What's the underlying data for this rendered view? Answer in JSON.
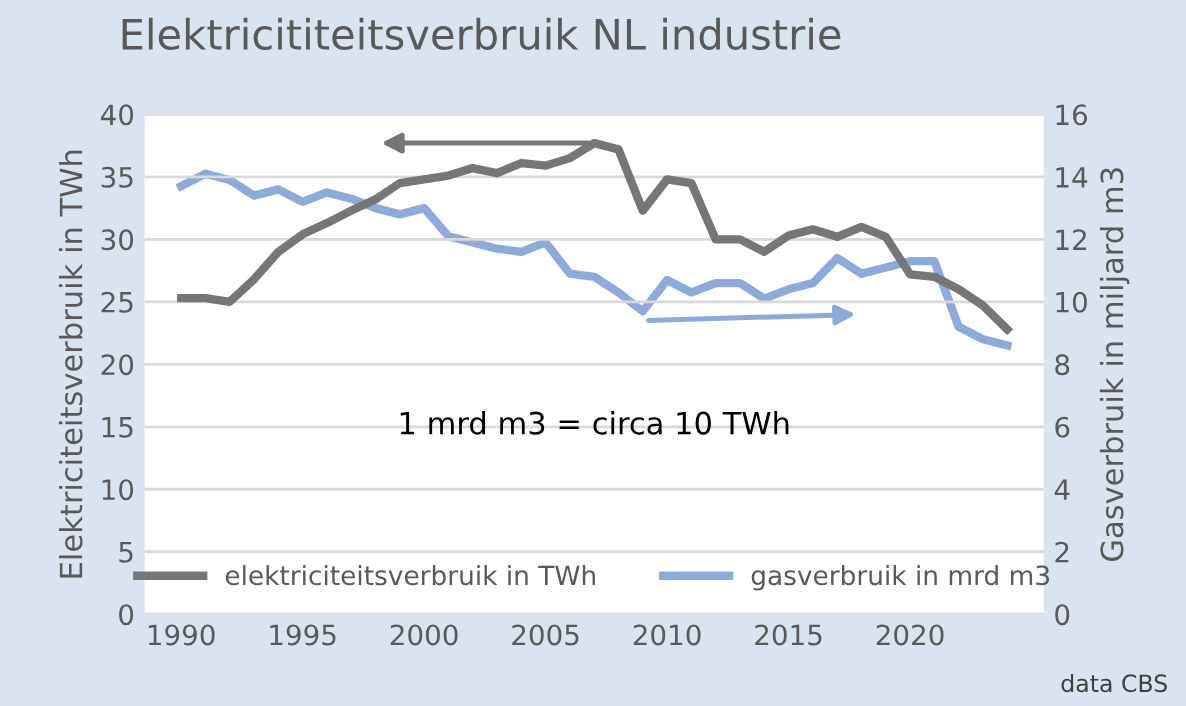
{
  "chart_data": {
    "type": "line",
    "title": "Elektricititeitsverbruik NL industrie",
    "ylabel": "Elektriciteitsverbruik in TWh",
    "y2label": "Gasverbruik in miljard m3",
    "x": [
      1990,
      1991,
      1992,
      1993,
      1994,
      1995,
      1996,
      1997,
      1998,
      1999,
      2000,
      2001,
      2002,
      2003,
      2004,
      2005,
      2006,
      2007,
      2008,
      2009,
      2010,
      2011,
      2012,
      2013,
      2014,
      2015,
      2016,
      2017,
      2018,
      2019,
      2020,
      2021,
      2022,
      2023,
      2024
    ],
    "series": [
      {
        "name": "elektriciteitsverbruik in TWh",
        "color": "#767676",
        "values": [
          25.3,
          25.3,
          25.0,
          26.8,
          29.0,
          30.4,
          31.3,
          32.3,
          33.2,
          34.5,
          34.8,
          35.1,
          35.7,
          35.3,
          36.1,
          35.9,
          36.5,
          37.7,
          37.2,
          32.3,
          34.8,
          34.5,
          30.0,
          30.0,
          29.0,
          30.3,
          30.8,
          30.2,
          31.0,
          30.2,
          27.2,
          27.0,
          26.0,
          24.7,
          22.8
        ]
      },
      {
        "name": "gasverbruik in mrd m3",
        "color": "#8eaadb",
        "axis": "y2",
        "values": [
          13.7,
          14.1,
          13.9,
          13.4,
          13.6,
          13.2,
          13.5,
          13.3,
          13.0,
          12.8,
          13.0,
          12.1,
          11.9,
          11.7,
          11.6,
          11.9,
          10.9,
          10.8,
          10.3,
          9.7,
          10.7,
          10.3,
          10.6,
          10.6,
          10.1,
          10.4,
          10.6,
          11.4,
          10.9,
          11.1,
          11.3,
          11.3,
          9.2,
          8.8,
          8.6
        ]
      }
    ],
    "xlim": [
      1988.5,
      2025.5
    ],
    "xticks": [
      1990,
      1995,
      2000,
      2005,
      2010,
      2015,
      2020
    ],
    "ylim": [
      0,
      40
    ],
    "yticks": [
      0,
      5,
      10,
      15,
      20,
      25,
      30,
      35,
      40
    ],
    "y2lim": [
      0,
      16
    ],
    "y2ticks": [
      0,
      2,
      4,
      6,
      8,
      10,
      12,
      14,
      16
    ],
    "grid": "y",
    "legend": "bottom",
    "line_style": "solid",
    "marker": "none",
    "annotations": [
      "1 mrd m3 = circa 10 TWh",
      "data CBS"
    ]
  }
}
